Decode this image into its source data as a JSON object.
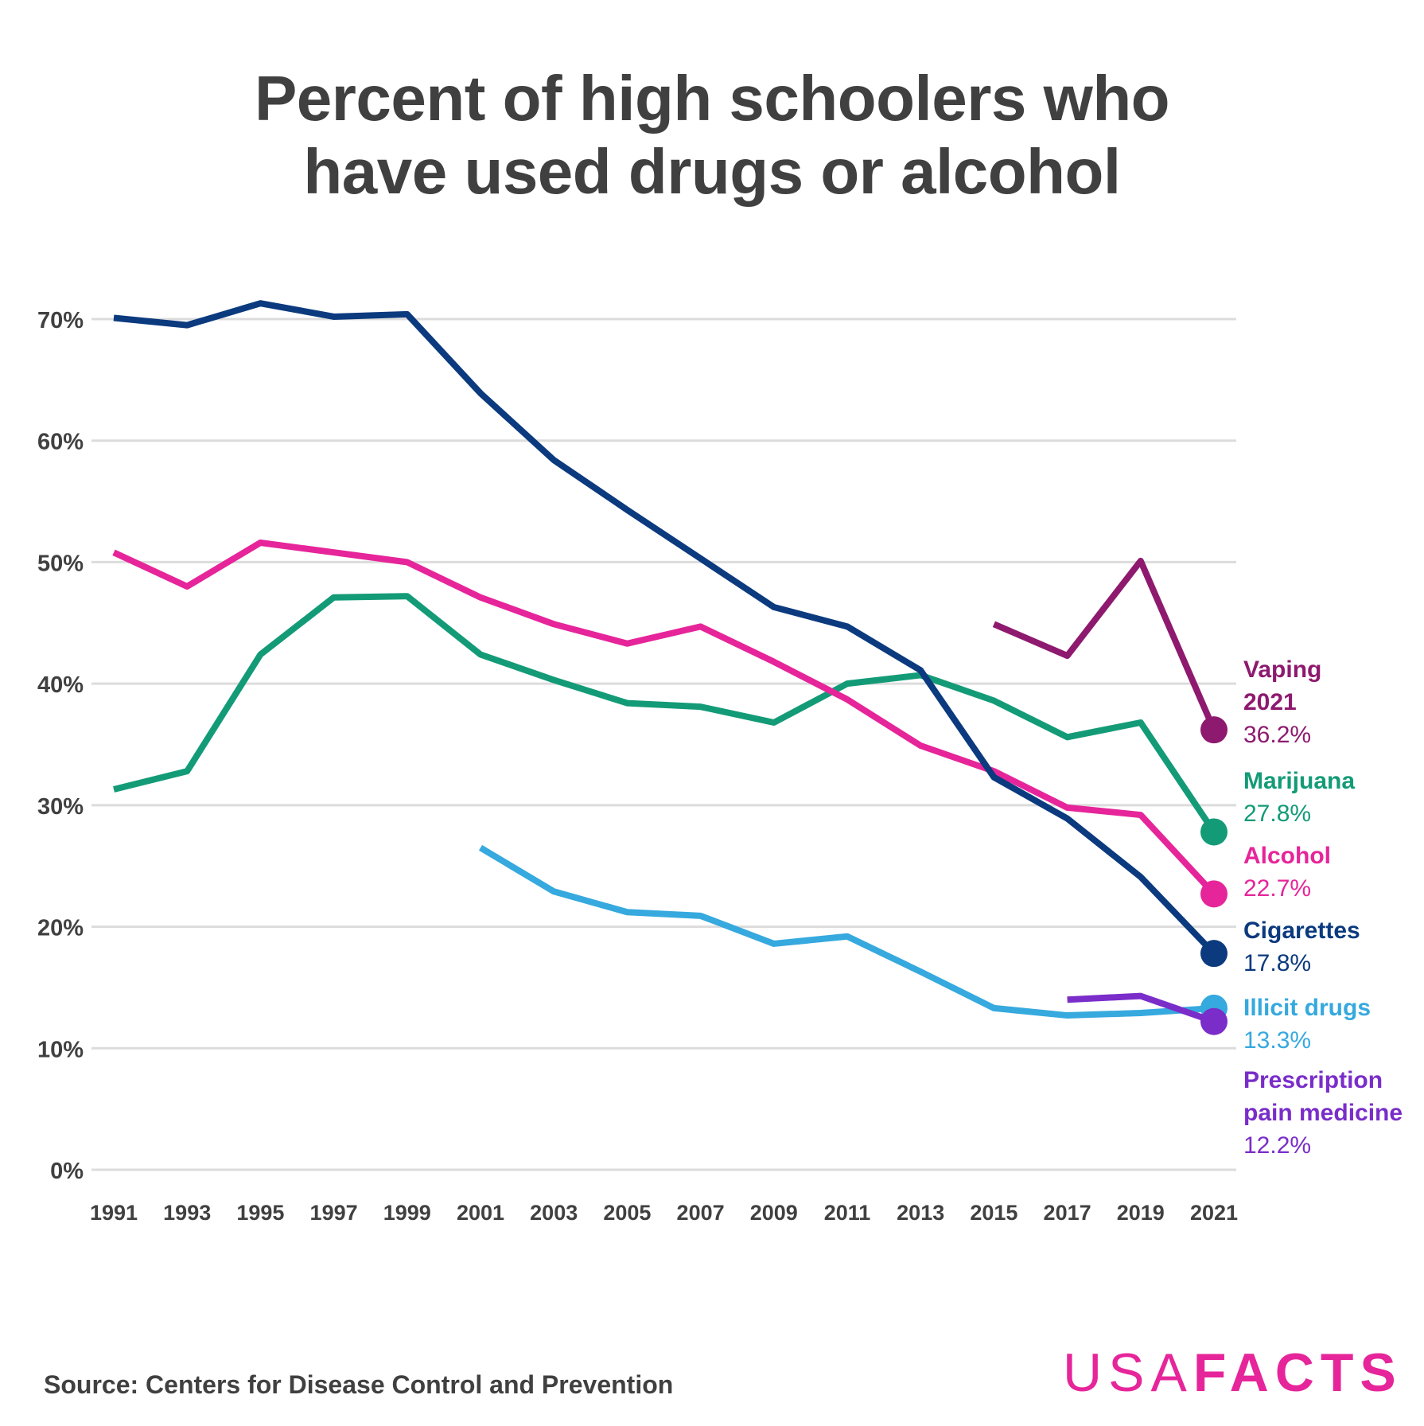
{
  "chart_data": {
    "type": "line",
    "title": "Percent of high schoolers who have used drugs or alcohol",
    "title_lines": [
      "Percent of high schoolers who",
      "have used drugs or alcohol"
    ],
    "x": [
      1991,
      1993,
      1995,
      1997,
      1999,
      2001,
      2003,
      2005,
      2007,
      2009,
      2011,
      2013,
      2015,
      2017,
      2019,
      2021
    ],
    "x_tick_labels": [
      "1991",
      "1993",
      "1995",
      "1997",
      "1999",
      "2001",
      "2003",
      "2005",
      "2007",
      "2009",
      "2011",
      "2013",
      "2015",
      "2017",
      "2019",
      "2021"
    ],
    "y_ticks": [
      0,
      10,
      20,
      30,
      40,
      50,
      60,
      70
    ],
    "y_tick_labels": [
      "0%",
      "10%",
      "20%",
      "30%",
      "40%",
      "50%",
      "60%",
      "70%"
    ],
    "ylim": [
      0,
      70
    ],
    "xlim": [
      1991,
      2021
    ],
    "grid": "horizontal",
    "legend": "direct labels at right",
    "series": [
      {
        "name": "Vaping 2021",
        "value_label": "36.2%",
        "color": "#8e1a6f",
        "values": [
          null,
          null,
          null,
          null,
          null,
          null,
          null,
          null,
          null,
          null,
          null,
          null,
          44.9,
          42.3,
          50.1,
          36.2
        ]
      },
      {
        "name": "Marijuana",
        "value_label": "27.8%",
        "color": "#139b77",
        "values": [
          31.3,
          32.8,
          42.4,
          47.1,
          47.2,
          42.4,
          40.3,
          38.4,
          38.1,
          36.8,
          40.0,
          40.7,
          38.6,
          35.6,
          36.8,
          27.8
        ]
      },
      {
        "name": "Alcohol",
        "value_label": "22.7%",
        "color": "#e6259a",
        "values": [
          50.8,
          48.0,
          51.6,
          50.8,
          50.0,
          47.1,
          44.9,
          43.3,
          44.7,
          41.8,
          38.7,
          34.9,
          32.8,
          29.8,
          29.2,
          22.7
        ]
      },
      {
        "name": "Cigarettes",
        "value_label": "17.8%",
        "color": "#0b3a7e",
        "values": [
          70.1,
          69.5,
          71.3,
          70.2,
          70.4,
          63.9,
          58.4,
          54.3,
          50.3,
          46.3,
          44.7,
          41.1,
          32.3,
          28.9,
          24.1,
          17.8
        ]
      },
      {
        "name": "Illicit drugs",
        "value_label": "13.3%",
        "color": "#36a9de",
        "values": [
          null,
          null,
          null,
          null,
          null,
          26.5,
          22.9,
          21.2,
          20.9,
          18.6,
          19.2,
          16.3,
          13.3,
          12.7,
          12.9,
          13.3
        ]
      },
      {
        "name": "Prescription pain medicine",
        "value_label": "12.2%",
        "color": "#7a2dc9",
        "values": [
          null,
          null,
          null,
          null,
          null,
          null,
          null,
          null,
          null,
          null,
          null,
          null,
          null,
          14.0,
          14.3,
          12.2
        ]
      }
    ]
  },
  "source": "Source: Centers for Disease Control and Prevention",
  "logo": {
    "light": "USA",
    "bold": "FACTS",
    "color": "#e6259a"
  }
}
